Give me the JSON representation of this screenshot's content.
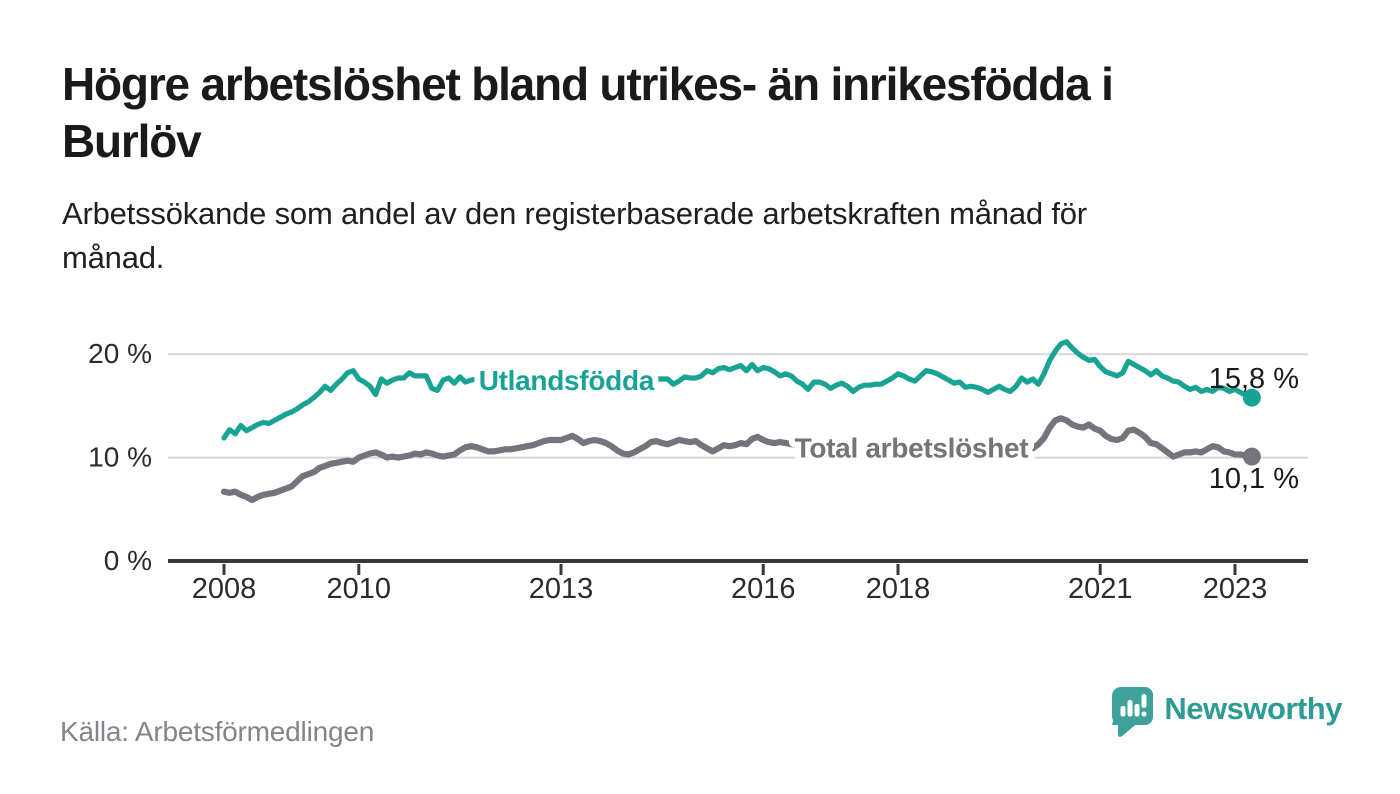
{
  "header": {
    "title_lines": [
      "Högre arbetslöshet bland utrikes- än inrikesfödda i",
      "Burlöv"
    ],
    "subtitle_lines": [
      "Arbetssökande som andel av den registerbaserade arbetskraften månad för",
      "månad."
    ]
  },
  "chart_data": {
    "type": "line",
    "title": "Högre arbetslöshet bland utrikes- än inrikesfödda i Burlöv",
    "subtitle": "Arbetssökande som andel av den registerbaserade arbetskraften månad för månad.",
    "unit": "%",
    "grid": true,
    "legend_position": "inline-labels-on-lines",
    "xlim": [
      2007.2,
      2024.1
    ],
    "ylim": [
      0,
      22.5
    ],
    "x_ticks": [
      2008,
      2010,
      2013,
      2016,
      2018,
      2021,
      2023
    ],
    "y_ticks": [
      {
        "value": 0,
        "label": "0 %"
      },
      {
        "value": 10,
        "label": "10 %"
      },
      {
        "value": 20,
        "label": "20 %"
      }
    ],
    "y_gridlines": [
      10,
      20
    ],
    "series": [
      {
        "name": "Utlandsfödda",
        "color": "#19a394",
        "start_year": 2008,
        "frequency": "monthly",
        "end_label": "15,8 %",
        "end_value": 15.8,
        "inline_label": {
          "text": "Utlandsfödda",
          "x_year": 2013.08,
          "y_value": 17.5
        },
        "values": [
          11.9,
          12.7,
          12.3,
          13.1,
          12.6,
          12.9,
          13.2,
          13.4,
          13.3,
          13.6,
          13.9,
          14.2,
          14.4,
          14.7,
          15.1,
          15.4,
          15.8,
          16.3,
          16.9,
          16.5,
          17.1,
          17.6,
          18.2,
          18.4,
          17.6,
          17.3,
          16.9,
          16.1,
          17.6,
          17.2,
          17.5,
          17.7,
          17.7,
          18.2,
          17.9,
          17.9,
          17.9,
          16.7,
          16.5,
          17.5,
          17.7,
          17.2,
          17.8,
          17.3,
          17.5,
          17.6,
          17.4,
          17.5,
          17.4,
          17.3,
          17.5,
          17.6,
          17.4,
          17.5,
          17.6,
          17.5,
          17.4,
          17.5,
          17.6,
          17.5,
          17.5,
          17.6,
          17.5,
          17.4,
          17.5,
          17.6,
          17.5,
          17.6,
          17.7,
          17.6,
          17.5,
          17.6,
          17.5,
          17.6,
          17.5,
          17.6,
          17.7,
          17.6,
          17.6,
          17.6,
          17.1,
          17.4,
          17.8,
          17.7,
          17.7,
          17.9,
          18.4,
          18.2,
          18.6,
          18.7,
          18.5,
          18.7,
          18.9,
          18.4,
          19.0,
          18.4,
          18.7,
          18.6,
          18.3,
          17.9,
          18.1,
          17.9,
          17.4,
          17.1,
          16.6,
          17.3,
          17.3,
          17.1,
          16.7,
          17.0,
          17.2,
          16.9,
          16.4,
          16.8,
          17.0,
          17.0,
          17.1,
          17.1,
          17.4,
          17.7,
          18.1,
          17.9,
          17.6,
          17.4,
          17.9,
          18.4,
          18.3,
          18.1,
          17.8,
          17.5,
          17.2,
          17.3,
          16.8,
          16.9,
          16.8,
          16.6,
          16.3,
          16.6,
          16.9,
          16.6,
          16.4,
          16.9,
          17.7,
          17.3,
          17.6,
          17.1,
          18.1,
          19.4,
          20.3,
          21.0,
          21.2,
          20.6,
          20.1,
          19.7,
          19.4,
          19.5,
          18.8,
          18.3,
          18.1,
          17.9,
          18.2,
          19.3,
          19.0,
          18.7,
          18.4,
          18.0,
          18.4,
          17.9,
          17.7,
          17.4,
          17.3,
          16.9,
          16.6,
          16.8,
          16.4,
          16.6,
          16.4,
          16.8,
          16.7,
          16.4,
          16.6,
          16.3,
          16.0,
          15.8
        ]
      },
      {
        "name": "Total arbetslöshet",
        "color": "#75737b",
        "start_year": 2008,
        "frequency": "monthly",
        "end_label": "10,1 %",
        "end_value": 10.1,
        "inline_label": {
          "text": "Total arbetslöshet",
          "x_year": 2018.2,
          "y_value": 11.0
        },
        "values": [
          6.7,
          6.6,
          6.7,
          6.4,
          6.2,
          5.9,
          6.2,
          6.4,
          6.5,
          6.6,
          6.8,
          7.0,
          7.2,
          7.7,
          8.2,
          8.4,
          8.6,
          9.0,
          9.2,
          9.4,
          9.5,
          9.6,
          9.7,
          9.6,
          10.0,
          10.2,
          10.4,
          10.5,
          10.3,
          10.0,
          10.1,
          10.0,
          10.1,
          10.2,
          10.4,
          10.3,
          10.5,
          10.4,
          10.2,
          10.1,
          10.2,
          10.3,
          10.7,
          11.0,
          11.1,
          11.0,
          10.8,
          10.6,
          10.6,
          10.7,
          10.8,
          10.8,
          10.9,
          11.0,
          11.1,
          11.2,
          11.4,
          11.6,
          11.7,
          11.7,
          11.7,
          11.9,
          12.1,
          11.8,
          11.4,
          11.6,
          11.7,
          11.6,
          11.4,
          11.1,
          10.7,
          10.4,
          10.3,
          10.5,
          10.8,
          11.1,
          11.5,
          11.6,
          11.4,
          11.3,
          11.5,
          11.7,
          11.6,
          11.5,
          11.6,
          11.2,
          10.9,
          10.6,
          10.9,
          11.2,
          11.1,
          11.2,
          11.4,
          11.3,
          11.8,
          12.0,
          11.7,
          11.5,
          11.4,
          11.5,
          11.4,
          11.3,
          11.2,
          11.3,
          11.4,
          11.3,
          11.2,
          11.3,
          11.2,
          11.1,
          11.0,
          11.1,
          11.0,
          10.9,
          10.8,
          10.9,
          11.0,
          10.9,
          10.8,
          10.9,
          10.8,
          10.7,
          10.6,
          10.7,
          10.6,
          10.5,
          10.4,
          10.5,
          10.6,
          10.5,
          10.4,
          10.5,
          10.4,
          10.3,
          10.4,
          10.3,
          10.2,
          10.3,
          10.4,
          10.3,
          10.4,
          10.5,
          10.6,
          10.7,
          10.9,
          11.3,
          11.9,
          12.9,
          13.6,
          13.8,
          13.6,
          13.2,
          13.0,
          12.9,
          13.2,
          12.8,
          12.6,
          12.1,
          11.8,
          11.7,
          11.9,
          12.6,
          12.7,
          12.4,
          12.0,
          11.4,
          11.3,
          10.9,
          10.5,
          10.1,
          10.3,
          10.5,
          10.5,
          10.6,
          10.5,
          10.8,
          11.1,
          11.0,
          10.6,
          10.5,
          10.3,
          10.3,
          10.2,
          10.1
        ]
      }
    ]
  },
  "footer": {
    "source": "Källa: Arbetsförmedlingen",
    "brand": "Newsworthy"
  },
  "colors": {
    "accent_teal": "#19a394",
    "series_gray": "#75737b",
    "axis": "#39373b",
    "grid": "#d8d8d8",
    "tick_text": "#2b2b2b",
    "value_label_text": "#1a1a1a",
    "title_text": "#1a1a1a",
    "source_text": "#85838b",
    "brand_teal": "#2e9c95"
  },
  "icons": {
    "logo": "newsworthy-speech-bubble-chart-icon"
  }
}
